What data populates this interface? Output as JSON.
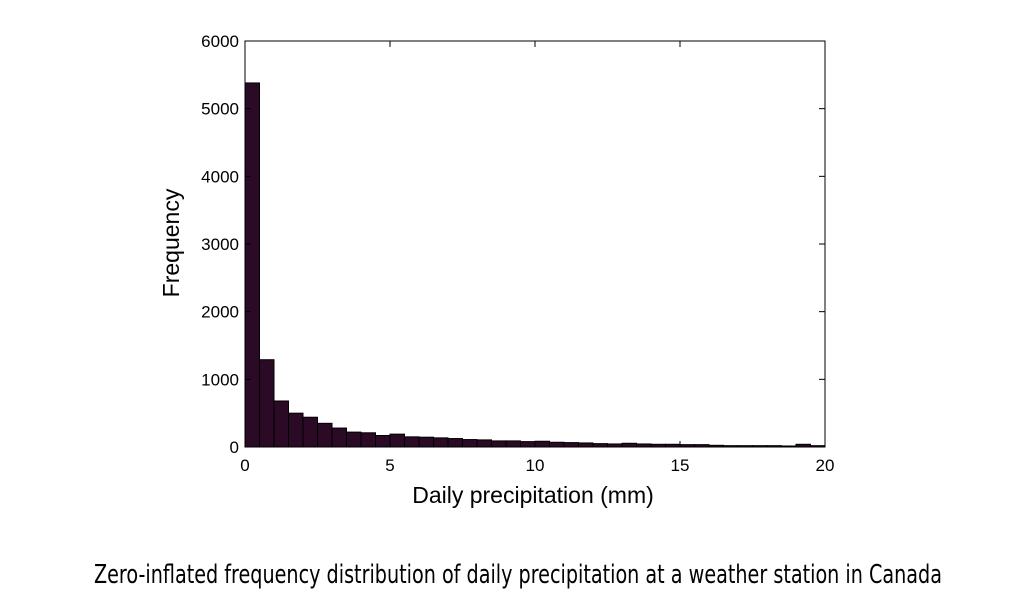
{
  "caption": "Zero-inflated frequency distribution of daily precipitation at a weather station in Canada",
  "chart_data": {
    "type": "bar",
    "title": "",
    "xlabel": "Daily precipitation (mm)",
    "ylabel": "Frequency",
    "xlim": [
      0,
      20
    ],
    "ylim": [
      0,
      6000
    ],
    "xticks": [
      0,
      5,
      10,
      15,
      20
    ],
    "yticks": [
      0,
      1000,
      2000,
      3000,
      4000,
      5000,
      6000
    ],
    "grid": false,
    "bar_color": "#2a0a24",
    "bin_width": 0.5,
    "x": [
      0,
      0.5,
      1,
      1.5,
      2,
      2.5,
      3,
      3.5,
      4,
      4.5,
      5,
      5.5,
      6,
      6.5,
      7,
      7.5,
      8,
      8.5,
      9,
      9.5,
      10,
      10.5,
      11,
      11.5,
      12,
      12.5,
      13,
      13.5,
      14,
      14.5,
      15,
      15.5,
      16,
      16.5,
      17,
      17.5,
      18,
      18.5,
      19,
      19.5
    ],
    "values": [
      5380,
      1290,
      680,
      500,
      440,
      350,
      280,
      220,
      210,
      170,
      190,
      150,
      145,
      135,
      125,
      110,
      105,
      90,
      90,
      80,
      85,
      70,
      65,
      60,
      50,
      45,
      55,
      45,
      40,
      40,
      35,
      35,
      25,
      20,
      20,
      20,
      20,
      15,
      40,
      20
    ]
  }
}
